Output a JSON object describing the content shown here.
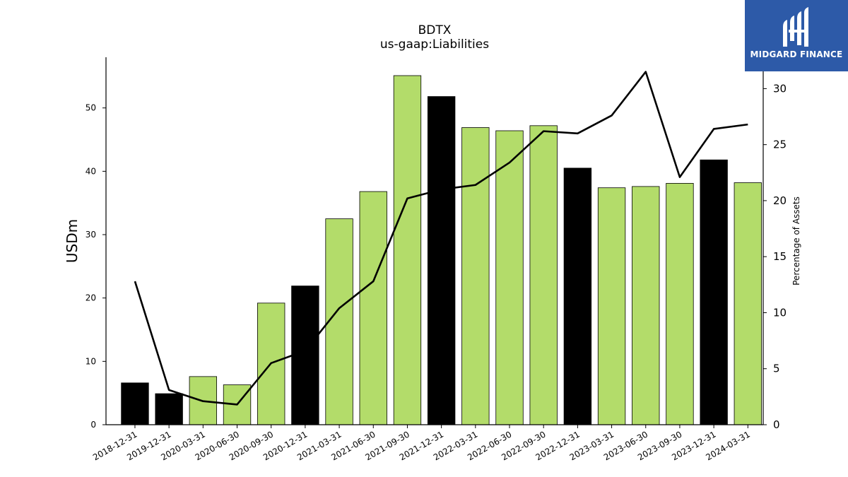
{
  "logo": {
    "text": "MIDGARD FINANCE"
  },
  "chart_data": {
    "type": "bar",
    "title": "BDTX",
    "subtitle": "us-gaap:Liabilities",
    "ylabel": "USDm",
    "ylabel_right": "Percentage of Assets",
    "ylim": [
      0,
      58
    ],
    "ylim_right": [
      0,
      32.8
    ],
    "yticks": [
      0,
      10,
      20,
      30,
      40,
      50
    ],
    "yticks_right": [
      0,
      5,
      10,
      15,
      20,
      25,
      30
    ],
    "categories": [
      "2018-12-31",
      "2019-12-31",
      "2020-03-31",
      "2020-06-30",
      "2020-09-30",
      "2020-12-31",
      "2021-03-31",
      "2021-06-30",
      "2021-09-30",
      "2021-12-31",
      "2022-03-31",
      "2022-06-30",
      "2022-09-30",
      "2022-12-31",
      "2023-03-31",
      "2023-06-30",
      "2023-09-30",
      "2023-12-31",
      "2024-03-31"
    ],
    "series": [
      {
        "type": "bar",
        "axis": "left",
        "values": [
          6.6,
          4.9,
          7.6,
          6.3,
          19.2,
          21.9,
          32.5,
          36.8,
          55.1,
          51.8,
          46.9,
          46.4,
          47.2,
          40.5,
          37.4,
          37.6,
          38.1,
          41.8,
          38.2
        ]
      },
      {
        "type": "line",
        "axis": "right",
        "values": [
          12.8,
          3.1,
          2.1,
          1.8,
          5.5,
          6.6,
          10.4,
          12.8,
          20.2,
          21.0,
          21.4,
          23.4,
          26.2,
          26.0,
          27.6,
          31.5,
          22.1,
          26.4,
          26.8
        ]
      }
    ],
    "bar_highlight": [
      true,
      true,
      false,
      false,
      false,
      true,
      false,
      false,
      false,
      true,
      false,
      false,
      false,
      true,
      false,
      false,
      false,
      true,
      false
    ],
    "colors": {
      "bar": "#b3dc6a",
      "bar_highlight": "#000000",
      "line": "#000000"
    },
    "grid": false,
    "legend": "none"
  }
}
